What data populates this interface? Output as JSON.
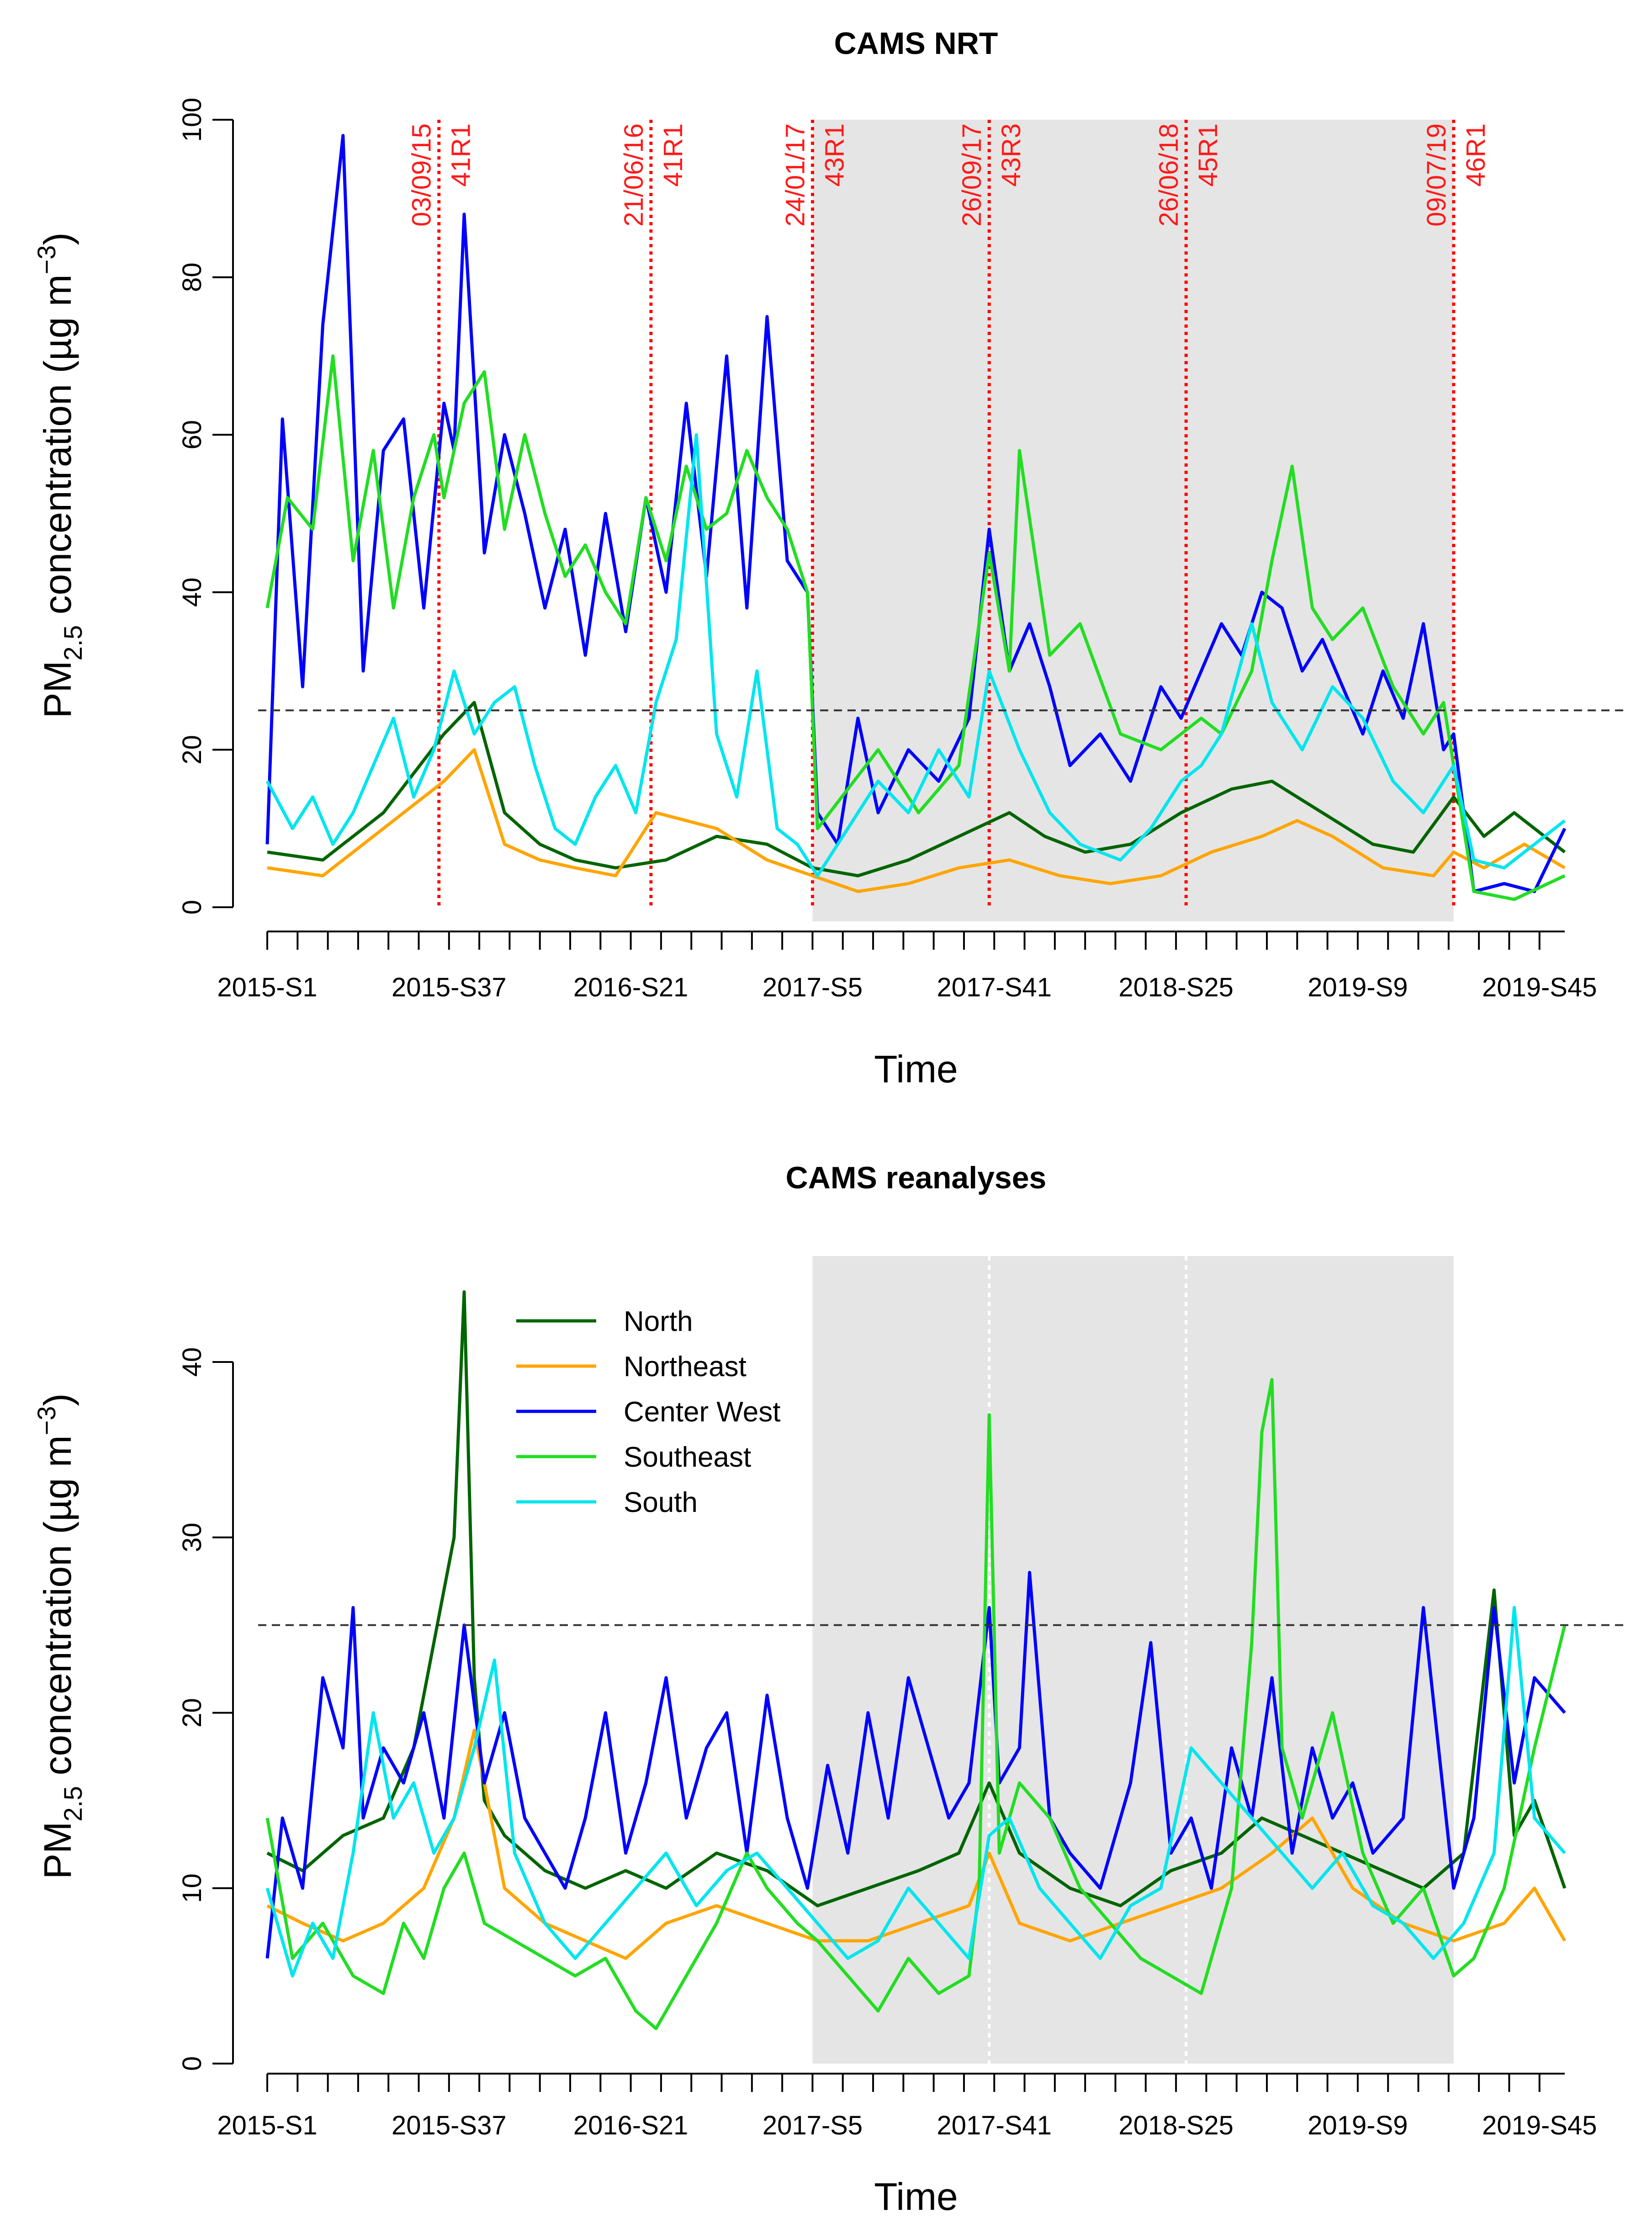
{
  "chart_data": [
    {
      "type": "line",
      "title": "CAMS NRT",
      "xlabel": "Time",
      "ylabel": "PM2.5 concentration (µg m−3)",
      "ylabel_parts": {
        "pre": "PM",
        "sub": "2.5",
        "mid": " concentration (µg m",
        "sup": "−3",
        "post": ")"
      },
      "ylim": [
        0,
        100
      ],
      "yticks": [
        0,
        20,
        40,
        60,
        80,
        100
      ],
      "xlim": [
        1,
        258
      ],
      "x_tick_labels": [
        "2015-S1",
        "2015-S37",
        "2016-S21",
        "2017-S5",
        "2017-S41",
        "2018-S25",
        "2019-S9",
        "2019-S45"
      ],
      "x_tick_label_positions": [
        1,
        37,
        73,
        109,
        145,
        181,
        217,
        253
      ],
      "threshold": 25,
      "shaded_region": [
        109,
        236
      ],
      "version_changes": [
        {
          "x": 35,
          "date": "03/09/15",
          "version": "41R1"
        },
        {
          "x": 77,
          "date": "21/06/16",
          "version": "41R1"
        },
        {
          "x": 109,
          "date": "24/01/17",
          "version": "43R1"
        },
        {
          "x": 144,
          "date": "26/09/17",
          "version": "43R3"
        },
        {
          "x": 183,
          "date": "26/06/18",
          "version": "45R1"
        },
        {
          "x": 236,
          "date": "09/07/19",
          "version": "46R1"
        }
      ],
      "series": [
        {
          "name": "North",
          "color": "#006400",
          "x": [
            1,
            12,
            24,
            36,
            42,
            48,
            55,
            62,
            70,
            80,
            90,
            100,
            109,
            118,
            128,
            138,
            148,
            155,
            163,
            172,
            182,
            192,
            200,
            210,
            220,
            228,
            236,
            242,
            248,
            258
          ],
          "values": [
            7,
            6,
            12,
            22,
            26,
            12,
            8,
            6,
            5,
            6,
            9,
            8,
            5,
            4,
            6,
            9,
            12,
            9,
            7,
            8,
            12,
            15,
            16,
            12,
            8,
            7,
            14,
            9,
            12,
            7
          ]
        },
        {
          "name": "Northeast",
          "color": "#ffa500",
          "x": [
            1,
            12,
            24,
            36,
            42,
            48,
            55,
            62,
            70,
            78,
            90,
            100,
            109,
            118,
            128,
            138,
            148,
            158,
            168,
            178,
            188,
            198,
            205,
            212,
            222,
            232,
            236,
            242,
            250,
            258
          ],
          "values": [
            5,
            4,
            10,
            16,
            20,
            8,
            6,
            5,
            4,
            12,
            10,
            6,
            4,
            2,
            3,
            5,
            6,
            4,
            3,
            4,
            7,
            9,
            11,
            9,
            5,
            4,
            7,
            5,
            8,
            5
          ]
        },
        {
          "name": "Center West",
          "color": "#0000ff",
          "x": [
            1,
            4,
            8,
            12,
            16,
            20,
            24,
            28,
            32,
            36,
            38,
            40,
            44,
            48,
            52,
            56,
            60,
            64,
            68,
            72,
            76,
            80,
            84,
            88,
            92,
            96,
            100,
            104,
            108,
            110,
            114,
            118,
            122,
            128,
            134,
            140,
            144,
            148,
            152,
            156,
            160,
            166,
            172,
            178,
            182,
            186,
            190,
            194,
            198,
            202,
            206,
            210,
            214,
            218,
            222,
            226,
            230,
            234,
            236,
            240,
            246,
            252,
            258
          ],
          "values": [
            8,
            62,
            28,
            74,
            98,
            30,
            58,
            62,
            38,
            64,
            58,
            88,
            45,
            60,
            50,
            38,
            48,
            32,
            50,
            35,
            52,
            40,
            64,
            42,
            70,
            38,
            75,
            44,
            40,
            12,
            8,
            24,
            12,
            20,
            16,
            24,
            48,
            30,
            36,
            28,
            18,
            22,
            16,
            28,
            24,
            30,
            36,
            32,
            40,
            38,
            30,
            34,
            28,
            22,
            30,
            24,
            36,
            20,
            22,
            2,
            3,
            2,
            10
          ]
        },
        {
          "name": "Southeast",
          "color": "#22dd22",
          "x": [
            1,
            5,
            10,
            14,
            18,
            22,
            26,
            30,
            34,
            36,
            40,
            44,
            48,
            52,
            56,
            60,
            64,
            68,
            72,
            76,
            80,
            84,
            88,
            92,
            96,
            100,
            104,
            108,
            110,
            116,
            122,
            130,
            138,
            144,
            148,
            150,
            156,
            162,
            170,
            178,
            186,
            190,
            196,
            200,
            204,
            208,
            212,
            218,
            224,
            230,
            234,
            236,
            240,
            248,
            258
          ],
          "values": [
            38,
            52,
            48,
            70,
            44,
            58,
            38,
            52,
            60,
            52,
            64,
            68,
            48,
            60,
            50,
            42,
            46,
            40,
            36,
            52,
            44,
            56,
            48,
            50,
            58,
            52,
            48,
            40,
            10,
            15,
            20,
            12,
            18,
            45,
            30,
            58,
            32,
            36,
            22,
            20,
            24,
            22,
            30,
            44,
            56,
            38,
            34,
            38,
            28,
            22,
            26,
            18,
            2,
            1,
            4
          ]
        },
        {
          "name": "South",
          "color": "#00e5ee",
          "x": [
            1,
            6,
            10,
            14,
            18,
            22,
            26,
            30,
            34,
            38,
            42,
            46,
            50,
            54,
            58,
            62,
            66,
            70,
            74,
            78,
            82,
            86,
            90,
            94,
            98,
            102,
            106,
            110,
            116,
            122,
            128,
            134,
            140,
            144,
            150,
            156,
            162,
            170,
            176,
            182,
            186,
            190,
            196,
            200,
            206,
            212,
            218,
            224,
            230,
            236,
            240,
            246,
            252,
            258
          ],
          "values": [
            16,
            10,
            14,
            8,
            12,
            18,
            24,
            14,
            20,
            30,
            22,
            26,
            28,
            18,
            10,
            8,
            14,
            18,
            12,
            26,
            34,
            60,
            22,
            14,
            30,
            10,
            8,
            4,
            10,
            16,
            12,
            20,
            14,
            30,
            20,
            12,
            8,
            6,
            10,
            16,
            18,
            22,
            36,
            26,
            20,
            28,
            24,
            16,
            12,
            18,
            6,
            5,
            8,
            11
          ]
        }
      ]
    },
    {
      "type": "line",
      "title": "CAMS reanalyses",
      "xlabel": "Time",
      "ylabel": "PM2.5 concentration (µg m−3)",
      "ylabel_parts": {
        "pre": "PM",
        "sub": "2.5",
        "mid": " concentration (µg m",
        "sup": "−3",
        "post": ")"
      },
      "ylim": [
        0,
        40
      ],
      "yticks": [
        0,
        10,
        20,
        30,
        40
      ],
      "xlim": [
        1,
        258
      ],
      "x_tick_labels": [
        "2015-S1",
        "2015-S37",
        "2016-S21",
        "2017-S5",
        "2017-S41",
        "2018-S25",
        "2019-S9",
        "2019-S45"
      ],
      "x_tick_label_positions": [
        1,
        37,
        73,
        109,
        145,
        181,
        217,
        253
      ],
      "threshold": 25,
      "shaded_region": [
        109,
        236
      ],
      "dividers": [
        144,
        183
      ],
      "legend_position": "top-left",
      "series": [
        {
          "name": "North",
          "color": "#006400",
          "x": [
            1,
            8,
            16,
            24,
            30,
            34,
            38,
            40,
            42,
            44,
            48,
            56,
            64,
            72,
            80,
            90,
            100,
            110,
            120,
            130,
            138,
            144,
            150,
            160,
            170,
            180,
            190,
            198,
            206,
            214,
            222,
            230,
            238,
            244,
            248,
            252,
            258
          ],
          "values": [
            12,
            11,
            13,
            14,
            18,
            24,
            30,
            44,
            22,
            15,
            13,
            11,
            10,
            11,
            10,
            12,
            11,
            9,
            10,
            11,
            12,
            16,
            12,
            10,
            9,
            11,
            12,
            14,
            13,
            12,
            11,
            10,
            12,
            27,
            13,
            15,
            10
          ]
        },
        {
          "name": "Northeast",
          "color": "#ffa500",
          "x": [
            1,
            8,
            16,
            24,
            32,
            38,
            42,
            48,
            56,
            64,
            72,
            80,
            90,
            100,
            110,
            120,
            130,
            140,
            144,
            150,
            160,
            170,
            180,
            190,
            200,
            208,
            216,
            226,
            236,
            246,
            252,
            258
          ],
          "values": [
            9,
            8,
            7,
            8,
            10,
            14,
            19,
            10,
            8,
            7,
            6,
            8,
            9,
            8,
            7,
            7,
            8,
            9,
            12,
            8,
            7,
            8,
            9,
            10,
            12,
            14,
            10,
            8,
            7,
            8,
            10,
            7
          ]
        },
        {
          "name": "Center West",
          "color": "#0000ff",
          "x": [
            1,
            4,
            8,
            12,
            16,
            18,
            20,
            24,
            28,
            32,
            36,
            40,
            44,
            48,
            52,
            56,
            60,
            64,
            68,
            72,
            76,
            80,
            84,
            88,
            92,
            96,
            100,
            104,
            108,
            112,
            116,
            120,
            124,
            128,
            132,
            136,
            140,
            144,
            146,
            150,
            152,
            156,
            160,
            166,
            172,
            176,
            180,
            184,
            188,
            192,
            196,
            200,
            204,
            208,
            212,
            216,
            220,
            226,
            230,
            236,
            240,
            244,
            248,
            252,
            258
          ],
          "values": [
            6,
            14,
            10,
            22,
            18,
            26,
            14,
            18,
            16,
            20,
            14,
            25,
            16,
            20,
            14,
            12,
            10,
            14,
            20,
            12,
            16,
            22,
            14,
            18,
            20,
            12,
            21,
            14,
            10,
            17,
            12,
            20,
            14,
            22,
            18,
            14,
            16,
            26,
            16,
            18,
            28,
            14,
            12,
            10,
            16,
            24,
            12,
            14,
            10,
            18,
            14,
            22,
            12,
            18,
            14,
            16,
            12,
            14,
            26,
            10,
            14,
            26,
            16,
            22,
            20
          ]
        },
        {
          "name": "Southeast",
          "color": "#22dd22",
          "x": [
            1,
            6,
            12,
            18,
            24,
            28,
            32,
            36,
            40,
            44,
            50,
            56,
            62,
            68,
            74,
            78,
            84,
            90,
            96,
            100,
            106,
            110,
            116,
            122,
            128,
            134,
            140,
            142,
            144,
            146,
            150,
            156,
            162,
            168,
            174,
            180,
            186,
            192,
            196,
            198,
            200,
            202,
            206,
            212,
            218,
            224,
            230,
            236,
            240,
            246,
            252,
            258
          ],
          "values": [
            14,
            6,
            8,
            5,
            4,
            8,
            6,
            10,
            12,
            8,
            7,
            6,
            5,
            6,
            3,
            2,
            5,
            8,
            12,
            10,
            8,
            7,
            5,
            3,
            6,
            4,
            5,
            10,
            37,
            12,
            16,
            14,
            10,
            8,
            6,
            5,
            4,
            10,
            24,
            36,
            39,
            18,
            14,
            20,
            12,
            8,
            10,
            5,
            6,
            10,
            18,
            25
          ]
        },
        {
          "name": "South",
          "color": "#00e5ee",
          "x": [
            1,
            6,
            10,
            14,
            18,
            22,
            26,
            30,
            34,
            38,
            42,
            46,
            50,
            56,
            62,
            68,
            74,
            80,
            86,
            92,
            98,
            104,
            110,
            116,
            122,
            128,
            134,
            140,
            144,
            148,
            154,
            160,
            166,
            172,
            178,
            184,
            190,
            196,
            202,
            208,
            214,
            220,
            226,
            232,
            238,
            244,
            248,
            252,
            258
          ],
          "values": [
            10,
            5,
            8,
            6,
            12,
            20,
            14,
            16,
            12,
            14,
            18,
            23,
            12,
            8,
            6,
            8,
            10,
            12,
            9,
            11,
            12,
            10,
            8,
            6,
            7,
            10,
            8,
            6,
            13,
            14,
            10,
            8,
            6,
            9,
            10,
            18,
            16,
            14,
            12,
            10,
            12,
            9,
            8,
            6,
            8,
            12,
            26,
            14,
            12
          ]
        }
      ]
    }
  ]
}
